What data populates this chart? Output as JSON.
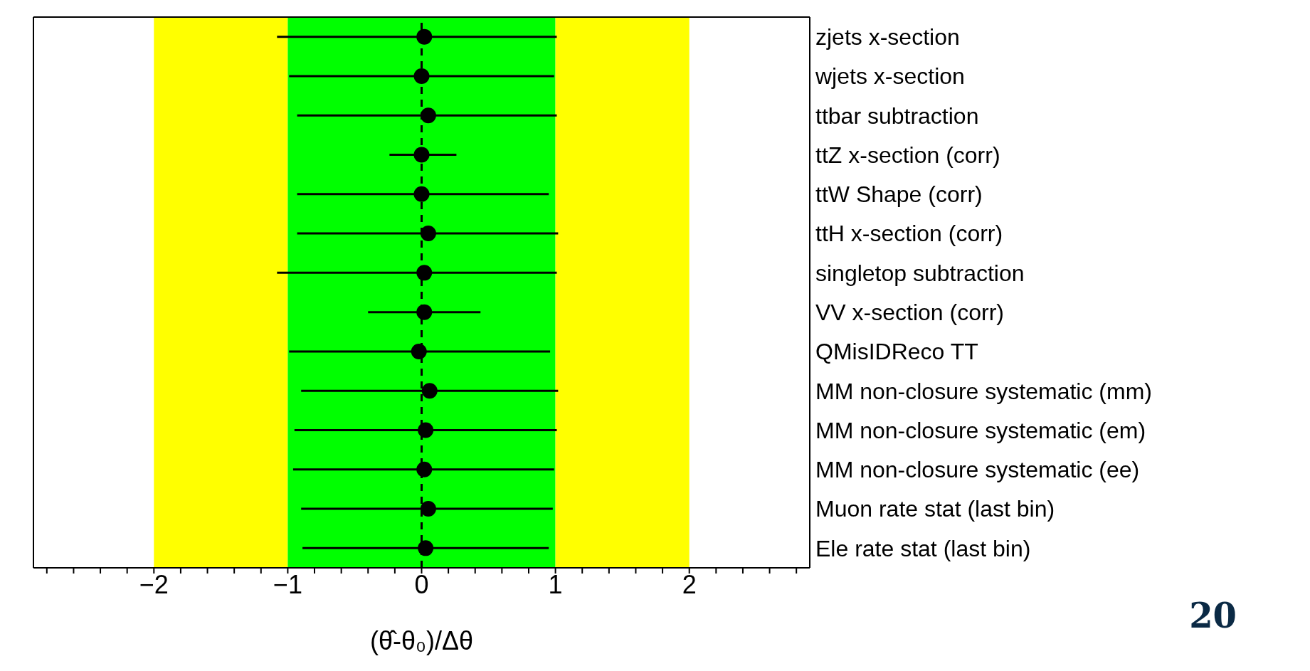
{
  "chart_data": {
    "type": "scatter",
    "orientation": "horizontal",
    "xlabel": "(θ̂-θ₀)/Δθ",
    "categories": [
      "zjets x-section",
      "wjets x-section",
      "ttbar subtraction",
      "ttZ x-section (corr)",
      "ttW Shape (corr)",
      "ttH x-section (corr)",
      "singletop subtraction",
      "VV x-section (corr)",
      "QMisIDReco TT",
      "MM non-closure systematic (mm)",
      "MM non-closure systematic (em)",
      "MM non-closure systematic (ee)",
      "Muon rate stat (last bin)",
      "Ele rate stat (last bin)"
    ],
    "series": [
      {
        "color": "#000000",
        "values": [
          0.02,
          0,
          0.05,
          0,
          0,
          0.05,
          0.02,
          0.02,
          -0.02,
          0.06,
          0.03,
          0.02,
          0.05,
          0.03
        ],
        "errors": [
          [
            -1.08,
            1.01
          ],
          [
            -0.99,
            0.99
          ],
          [
            -0.93,
            1.01
          ],
          [
            -0.24,
            0.26
          ],
          [
            -0.93,
            0.95
          ],
          [
            -0.93,
            1.02
          ],
          [
            -1.08,
            1.01
          ],
          [
            -0.4,
            0.44
          ],
          [
            -0.99,
            0.96
          ],
          [
            -0.9,
            1.02
          ],
          [
            -0.95,
            1.01
          ],
          [
            -0.96,
            0.99
          ],
          [
            -0.9,
            0.98
          ],
          [
            -0.89,
            0.95
          ]
        ]
      }
    ],
    "marker": "circle",
    "xlim": [
      -2.9,
      2.9
    ],
    "xticks": [
      {
        "value": -2.8,
        "label": null
      },
      {
        "value": -2.6,
        "label": null
      },
      {
        "value": -2.4,
        "label": null
      },
      {
        "value": -2.2,
        "label": null
      },
      {
        "value": -2,
        "label": "−2"
      },
      {
        "value": -1.8,
        "label": null
      },
      {
        "value": -1.6,
        "label": null
      },
      {
        "value": -1.4,
        "label": null
      },
      {
        "value": -1.2,
        "label": null
      },
      {
        "value": -1,
        "label": "−1"
      },
      {
        "value": -0.8,
        "label": null
      },
      {
        "value": -0.6,
        "label": null
      },
      {
        "value": -0.4,
        "label": null
      },
      {
        "value": -0.2,
        "label": null
      },
      0,
      {
        "value": 0.2,
        "label": null
      },
      {
        "value": 0.4,
        "label": null
      },
      {
        "value": 0.6,
        "label": null
      },
      {
        "value": 0.8,
        "label": null
      },
      1,
      {
        "value": 1.2,
        "label": null
      },
      {
        "value": 1.4,
        "label": null
      },
      {
        "value": 1.6,
        "label": null
      },
      {
        "value": 1.8,
        "label": null
      },
      2,
      {
        "value": 2.2,
        "label": null
      },
      {
        "value": 2.4,
        "label": null
      },
      {
        "value": 2.6,
        "label": null
      },
      {
        "value": 2.8,
        "label": null
      }
    ],
    "bands": [
      {
        "axis": "x",
        "from": -2,
        "to": -1,
        "color": "#ffff00"
      },
      {
        "axis": "x",
        "from": -1,
        "to": 1,
        "color": "#00ff00"
      },
      {
        "axis": "x",
        "from": 1,
        "to": 2,
        "color": "#ffff00"
      }
    ],
    "ref_lines": [
      {
        "axis": "x",
        "value": 0,
        "color": "#000000",
        "line_style": "dashed"
      }
    ],
    "annotations": [
      "20"
    ]
  }
}
